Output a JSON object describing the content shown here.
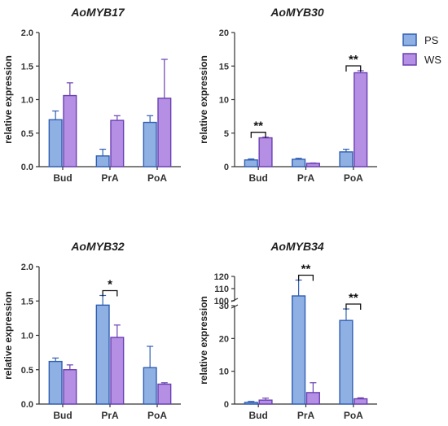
{
  "colors": {
    "PS_fill": "#8fb0e3",
    "PS_edge": "#2f5fb3",
    "WS_fill": "#b48fe3",
    "WS_edge": "#6a3fb3"
  },
  "legend": {
    "position": "top-right",
    "items": [
      "PS",
      "WS"
    ]
  },
  "chart_data": [
    {
      "type": "bar",
      "title": "AoMYB17",
      "ylabel": "relative expression",
      "xlabel": "",
      "categories": [
        "Bud",
        "PrA",
        "PoA"
      ],
      "ylim": [
        0,
        2.0
      ],
      "yticks": [
        "0.0",
        "0.5",
        "1.0",
        "1.5",
        "2.0"
      ],
      "series": [
        {
          "name": "PS",
          "values": [
            0.7,
            0.16,
            0.66
          ],
          "errors": [
            0.13,
            0.1,
            0.1
          ]
        },
        {
          "name": "WS",
          "values": [
            1.06,
            0.69,
            1.02
          ],
          "errors": [
            0.19,
            0.07,
            0.58
          ]
        }
      ],
      "significance": []
    },
    {
      "type": "bar",
      "title": "AoMYB30",
      "ylabel": "relative expression",
      "xlabel": "",
      "categories": [
        "Bud",
        "PrA",
        "PoA"
      ],
      "ylim": [
        0,
        20
      ],
      "yticks": [
        "0",
        "5",
        "10",
        "15",
        "20"
      ],
      "series": [
        {
          "name": "PS",
          "values": [
            1.0,
            1.1,
            2.2
          ],
          "errors": [
            0.15,
            0.15,
            0.4
          ]
        },
        {
          "name": "WS",
          "values": [
            4.3,
            0.5,
            14.0
          ],
          "errors": [
            0.1,
            0.05,
            0.3
          ]
        }
      ],
      "significance": [
        {
          "category": "Bud",
          "label": "**"
        },
        {
          "category": "PoA",
          "label": "**"
        }
      ]
    },
    {
      "type": "bar",
      "title": "AoMYB32",
      "ylabel": "relative expression",
      "xlabel": "",
      "categories": [
        "Bud",
        "PrA",
        "PoA"
      ],
      "ylim": [
        0,
        2.0
      ],
      "yticks": [
        "0.0",
        "0.5",
        "1.0",
        "1.5",
        "2.0"
      ],
      "series": [
        {
          "name": "PS",
          "values": [
            0.62,
            1.44,
            0.53
          ],
          "errors": [
            0.05,
            0.14,
            0.31
          ]
        },
        {
          "name": "WS",
          "values": [
            0.5,
            0.97,
            0.29
          ],
          "errors": [
            0.07,
            0.18,
            0.02
          ]
        }
      ],
      "significance": [
        {
          "category": "PrA",
          "label": "*"
        }
      ]
    },
    {
      "type": "bar",
      "title": "AoMYB34",
      "ylabel": "relative expression",
      "xlabel": "",
      "categories": [
        "Bud",
        "PrA",
        "PoA"
      ],
      "ylim": [
        0,
        120
      ],
      "axis_break": [
        30,
        100
      ],
      "yticks": [
        "0",
        "10",
        "20",
        "30",
        "100",
        "110",
        "120"
      ],
      "series": [
        {
          "name": "PS",
          "values": [
            0.5,
            104,
            25.5
          ],
          "errors": [
            0.3,
            13,
            3.5
          ]
        },
        {
          "name": "WS",
          "values": [
            1.2,
            3.5,
            1.6
          ],
          "errors": [
            0.6,
            3.0,
            0.3
          ]
        }
      ],
      "significance": [
        {
          "category": "PrA",
          "label": "**"
        },
        {
          "category": "PoA",
          "label": "**"
        }
      ]
    }
  ]
}
